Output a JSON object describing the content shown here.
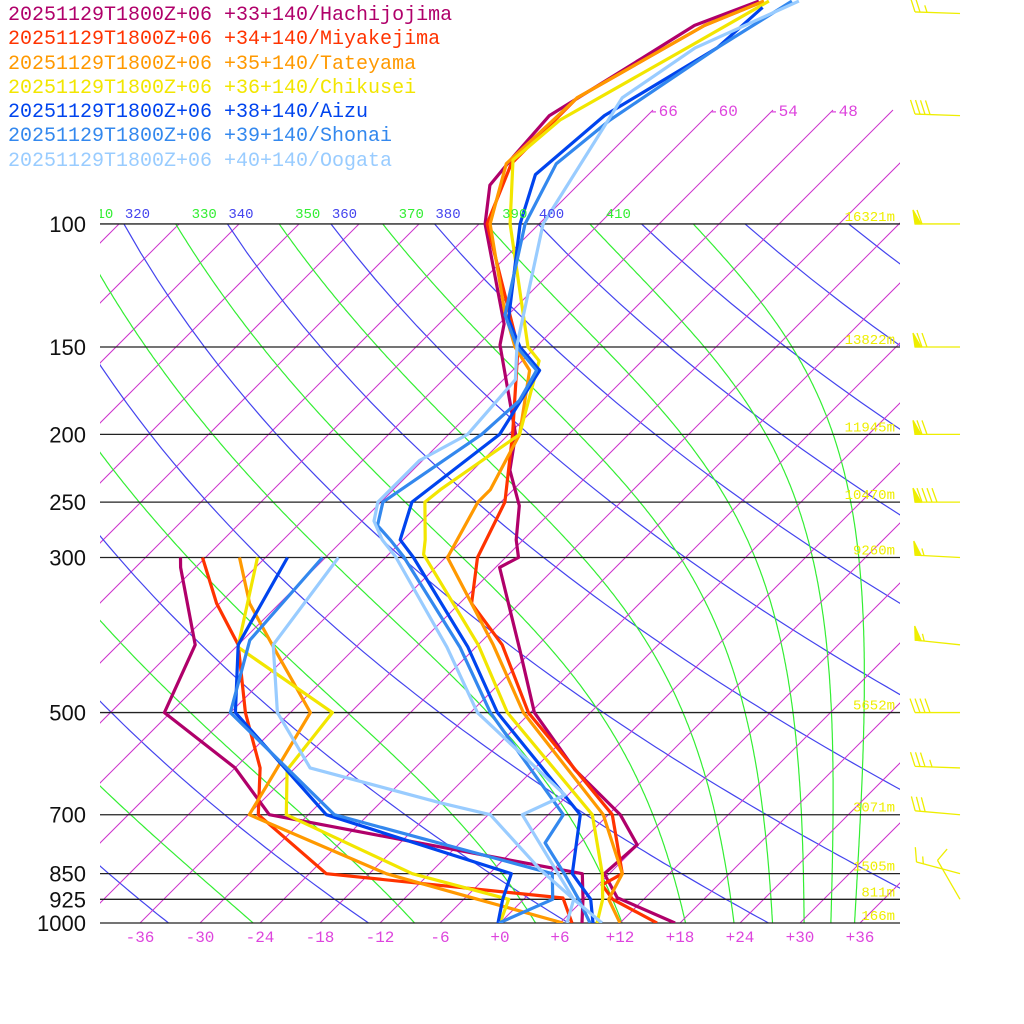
{
  "chart_data": {
    "type": "line",
    "subtype": "skew-T log-p sounding",
    "legend_placement": "top-left",
    "pressure_levels": [
      100,
      150,
      200,
      250,
      300,
      500,
      700,
      850,
      925,
      1000
    ],
    "pressure_labels": [
      "100",
      "150",
      "200",
      "250",
      "300",
      "500",
      "700",
      "850",
      "925",
      "1000"
    ],
    "temperature_ticks": [
      -36,
      -30,
      -24,
      -18,
      -12,
      -6,
      0,
      6,
      12,
      18,
      24,
      30,
      36
    ],
    "temperature_tick_labels": [
      "-36",
      "-30",
      "-24",
      "-18",
      "-12",
      "-6",
      "+0",
      "+6",
      "+12",
      "+18",
      "+24",
      "+30",
      "+36"
    ],
    "upper_isotherm_labels": [
      {
        "t": -66,
        "label": "-66"
      },
      {
        "t": -60,
        "label": "-60"
      },
      {
        "t": -54,
        "label": "-54"
      },
      {
        "t": -48,
        "label": "-48"
      }
    ],
    "dry_adiabat_labels": [
      {
        "theta": 320,
        "label": "320"
      },
      {
        "theta": 340,
        "label": "340"
      },
      {
        "theta": 360,
        "label": "360"
      },
      {
        "theta": 380,
        "label": "380"
      },
      {
        "theta": 400,
        "label": "400"
      }
    ],
    "moist_adiabat_labels": [
      {
        "theta": 310,
        "label": "310"
      },
      {
        "theta": 330,
        "label": "330"
      },
      {
        "theta": 350,
        "label": "350"
      },
      {
        "theta": 370,
        "label": "370"
      },
      {
        "theta": 390,
        "label": "390"
      },
      {
        "theta": 410,
        "label": "410"
      }
    ],
    "heights": [
      {
        "p": 100,
        "label": "16321m"
      },
      {
        "p": 150,
        "label": "13822m"
      },
      {
        "p": 200,
        "label": "11945m"
      },
      {
        "p": 250,
        "label": "10470m"
      },
      {
        "p": 300,
        "label": "9260m"
      },
      {
        "p": 500,
        "label": "5652m"
      },
      {
        "p": 700,
        "label": "3071m"
      },
      {
        "p": 850,
        "label": "1505m"
      },
      {
        "p": 925,
        "label": "811m"
      },
      {
        "p": 1000,
        "label": "166m"
      }
    ],
    "winds": [
      {
        "p": 50,
        "dir": 272,
        "kt": 25
      },
      {
        "p": 70,
        "dir": 272,
        "kt": 40
      },
      {
        "p": 100,
        "dir": 270,
        "kt": 60
      },
      {
        "p": 150,
        "dir": 270,
        "kt": 70
      },
      {
        "p": 200,
        "dir": 270,
        "kt": 70
      },
      {
        "p": 250,
        "dir": 270,
        "kt": 90
      },
      {
        "p": 300,
        "dir": 273,
        "kt": 55
      },
      {
        "p": 400,
        "dir": 276,
        "kt": 55
      },
      {
        "p": 500,
        "dir": 270,
        "kt": 40
      },
      {
        "p": 600,
        "dir": 272,
        "kt": 35
      },
      {
        "p": 700,
        "dir": 275,
        "kt": 30
      },
      {
        "p": 850,
        "dir": 285,
        "kt": 15
      },
      {
        "p": 925,
        "dir": 330,
        "kt": 10
      }
    ],
    "series": [
      {
        "name": "20251129T1800Z+06 +33+140/Hachijojima",
        "color": "#b0006a",
        "temperature": [
          [
            1000,
            17.5
          ],
          [
            920,
            9.2
          ],
          [
            850,
            5.5
          ],
          [
            773,
            5.9
          ],
          [
            700,
            1.2
          ],
          [
            604,
            -7.8
          ],
          [
            500,
            -17.6
          ],
          [
            407,
            -25.3
          ],
          [
            310,
            -35.6
          ],
          [
            300,
            -34.7
          ],
          [
            283,
            -36.7
          ],
          [
            253,
            -39.8
          ],
          [
            225,
            -44.3
          ],
          [
            200,
            -47.3
          ],
          [
            149,
            -57.8
          ],
          [
            139,
            -59.5
          ],
          [
            100,
            -71.4
          ],
          [
            88,
            -74.8
          ],
          [
            80,
            -75.3
          ],
          [
            70,
            -75.8
          ],
          [
            58,
            -72.3
          ],
          [
            52,
            -70.3
          ],
          [
            48,
            -66.3
          ]
        ],
        "dewpoint": [
          [
            1000,
            8.2
          ],
          [
            921,
            5.8
          ],
          [
            850,
            3.3
          ],
          [
            700,
            -33.9
          ],
          [
            600,
            -42.0
          ],
          [
            500,
            -54.6
          ],
          [
            400,
            -58.3
          ],
          [
            310,
            -67.5
          ],
          [
            300,
            -68.5
          ]
        ]
      },
      {
        "name": "20251129T1800Z+06 +34+140/Miyakejima",
        "color": "#ff3300",
        "temperature": [
          [
            1000,
            15.7
          ],
          [
            925,
            8.9
          ],
          [
            882,
            6.4
          ],
          [
            850,
            7.3
          ],
          [
            700,
            0.4
          ],
          [
            500,
            -18.2
          ],
          [
            400,
            -27.6
          ],
          [
            349,
            -34.8
          ],
          [
            300,
            -38.8
          ],
          [
            250,
            -41.6
          ],
          [
            200,
            -47.6
          ],
          [
            150,
            -55.8
          ],
          [
            100,
            -71.2
          ],
          [
            82,
            -74.8
          ],
          [
            66,
            -74.8
          ],
          [
            52,
            -69.3
          ],
          [
            48,
            -65.8
          ]
        ],
        "dewpoint": [
          [
            1000,
            7.2
          ],
          [
            921,
            3.8
          ],
          [
            850,
            -22.3
          ],
          [
            700,
            -35.0
          ],
          [
            600,
            -39.5
          ],
          [
            500,
            -46.5
          ],
          [
            400,
            -54.0
          ],
          [
            349,
            -60.3
          ],
          [
            300,
            -66.3
          ]
        ]
      },
      {
        "name": "20251129T1800Z+06 +35+140/Tateyama",
        "color": "#ff9900",
        "temperature": [
          [
            1000,
            12.0
          ],
          [
            925,
            8.5
          ],
          [
            850,
            7.3
          ],
          [
            700,
            -0.5
          ],
          [
            500,
            -18.7
          ],
          [
            400,
            -28.5
          ],
          [
            300,
            -41.8
          ],
          [
            283,
            -42.6
          ],
          [
            250,
            -44.3
          ],
          [
            240,
            -44.3
          ],
          [
            200,
            -46.9
          ],
          [
            162,
            -52.3
          ],
          [
            150,
            -56.1
          ],
          [
            133,
            -60.8
          ],
          [
            100,
            -70.9
          ],
          [
            82,
            -75.3
          ],
          [
            66,
            -74.8
          ],
          [
            52,
            -69.3
          ],
          [
            48,
            -65.8
          ]
        ],
        "dewpoint": [
          [
            1000,
            6.3
          ],
          [
            925,
            -4.6
          ],
          [
            850,
            -16.3
          ],
          [
            700,
            -35.9
          ],
          [
            500,
            -40.0
          ],
          [
            400,
            -50.6
          ],
          [
            349,
            -57.0
          ],
          [
            300,
            -62.6
          ]
        ]
      },
      {
        "name": "20251129T1800Z+06 +36+140/Chikusei",
        "color": "#f2e600",
        "temperature": [
          [
            1000,
            9.7
          ],
          [
            925,
            7.9
          ],
          [
            850,
            5.3
          ],
          [
            700,
            -1.6
          ],
          [
            500,
            -20.3
          ],
          [
            400,
            -30.0
          ],
          [
            297,
            -44.5
          ],
          [
            283,
            -45.8
          ],
          [
            250,
            -49.6
          ],
          [
            240,
            -49.3
          ],
          [
            200,
            -46.9
          ],
          [
            157,
            -52.3
          ],
          [
            150,
            -54.8
          ],
          [
            100,
            -68.9
          ],
          [
            81,
            -75.0
          ],
          [
            71,
            -74.3
          ],
          [
            56,
            -68.8
          ],
          [
            48,
            -65.3
          ]
        ],
        "dewpoint": [
          [
            1000,
            0.0
          ],
          [
            925,
            -1.5
          ],
          [
            850,
            -13.7
          ],
          [
            700,
            -32.2
          ],
          [
            604,
            -36.6
          ],
          [
            500,
            -37.8
          ],
          [
            403,
            -53.8
          ],
          [
            300,
            -60.8
          ]
        ]
      },
      {
        "name": "20251129T1800Z+06 +38+140/Aizu",
        "color": "#0044ee",
        "temperature": [
          [
            1000,
            9.3
          ],
          [
            925,
            6.7
          ],
          [
            850,
            2.3
          ],
          [
            700,
            -2.8
          ],
          [
            500,
            -21.3
          ],
          [
            403,
            -30.8
          ],
          [
            300,
            -45.2
          ],
          [
            283,
            -48.3
          ],
          [
            250,
            -50.9
          ],
          [
            200,
            -48.9
          ],
          [
            162,
            -51.3
          ],
          [
            150,
            -55.6
          ],
          [
            137,
            -59.5
          ],
          [
            100,
            -67.9
          ],
          [
            85,
            -71.3
          ],
          [
            70,
            -70.3
          ],
          [
            56,
            -65.8
          ],
          [
            49,
            -65.3
          ]
        ],
        "dewpoint": [
          [
            1000,
            -0.2
          ],
          [
            925,
            -2.1
          ],
          [
            850,
            -3.8
          ],
          [
            700,
            -28.2
          ],
          [
            500,
            -47.5
          ],
          [
            400,
            -54.0
          ],
          [
            300,
            -57.8
          ]
        ]
      },
      {
        "name": "20251129T1800Z+06 +39+140/Shonai",
        "color": "#3388ee",
        "temperature": [
          [
            1000,
            9.0
          ],
          [
            925,
            5.5
          ],
          [
            850,
            1.5
          ],
          [
            768,
            -3.5
          ],
          [
            700,
            -4.5
          ],
          [
            500,
            -22.0
          ],
          [
            403,
            -31.6
          ],
          [
            299,
            -46.3
          ],
          [
            283,
            -49.3
          ],
          [
            270,
            -52.0
          ],
          [
            250,
            -53.8
          ],
          [
            200,
            -50.7
          ],
          [
            179,
            -50.3
          ],
          [
            162,
            -51.6
          ],
          [
            150,
            -55.9
          ],
          [
            135,
            -60.3
          ],
          [
            100,
            -67.4
          ],
          [
            82,
            -70.3
          ],
          [
            71,
            -69.3
          ],
          [
            56,
            -65.8
          ],
          [
            48,
            -63.0
          ]
        ],
        "dewpoint": [
          [
            1000,
            -0.1
          ],
          [
            925,
            2.9
          ],
          [
            850,
            0.3
          ],
          [
            700,
            -27.4
          ],
          [
            500,
            -48.0
          ],
          [
            394,
            -53.3
          ],
          [
            300,
            -54.3
          ]
        ]
      },
      {
        "name": "20251129T1800Z+06 +40+140/Oogata",
        "color": "#99ccff",
        "temperature": [
          [
            1000,
            10.2
          ],
          [
            925,
            5.0
          ],
          [
            859,
            1.4
          ],
          [
            700,
            -8.6
          ],
          [
            656,
            -6.3
          ],
          [
            500,
            -23.3
          ],
          [
            403,
            -32.9
          ],
          [
            299,
            -47.1
          ],
          [
            283,
            -50.1
          ],
          [
            266,
            -52.8
          ],
          [
            250,
            -54.3
          ],
          [
            218,
            -54.3
          ],
          [
            200,
            -52.1
          ],
          [
            167,
            -52.8
          ],
          [
            149,
            -56.1
          ],
          [
            100,
            -65.6
          ],
          [
            66,
            -70.3
          ],
          [
            56,
            -68.0
          ],
          [
            48,
            -62.3
          ]
        ],
        "dewpoint": [
          [
            1000,
            6.7
          ],
          [
            925,
            5.0
          ],
          [
            839,
            -1.3
          ],
          [
            700,
            -11.8
          ],
          [
            673,
            -18.0
          ],
          [
            600,
            -34.5
          ],
          [
            500,
            -43.3
          ],
          [
            400,
            -50.5
          ],
          [
            300,
            -52.7
          ]
        ]
      }
    ],
    "colors": {
      "isotherm": "#cc33cc",
      "dry_adiabat": "#4444ee",
      "moist_adiabat": "#33ee33",
      "height_label": "#eeee00",
      "wind_barb": "#eeee00",
      "temp_label": "#dd44dd"
    }
  }
}
